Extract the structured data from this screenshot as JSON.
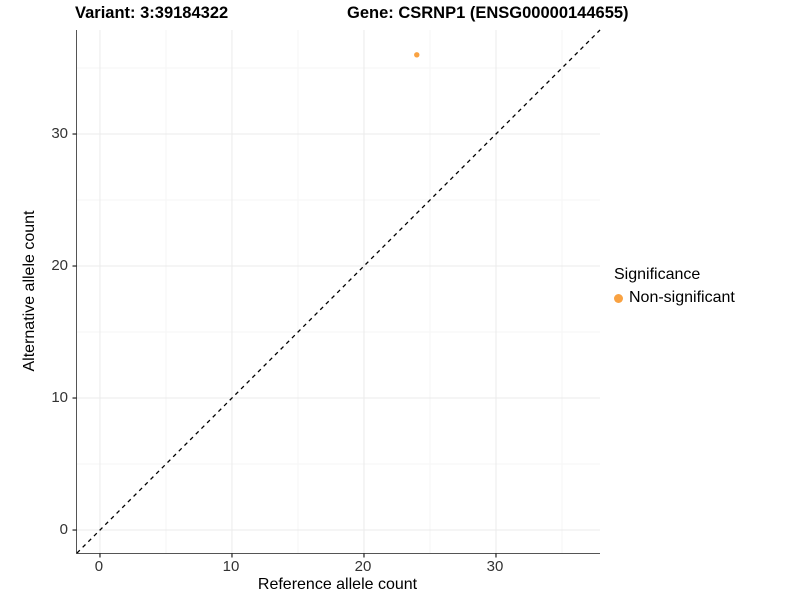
{
  "chart_data": {
    "type": "scatter",
    "titles": {
      "left": "Variant: 3:39184322",
      "right": "Gene: CSRNP1 (ENSG00000144655)"
    },
    "xlabel": "Reference allele count",
    "ylabel": "Alternative allele count",
    "xlim": [
      -1.74,
      37.88
    ],
    "ylim": [
      -1.74,
      37.88
    ],
    "x_major_ticks": [
      0,
      10,
      20,
      30
    ],
    "y_major_ticks": [
      0,
      10,
      20,
      30
    ],
    "x_minor_gridlines": [
      5,
      15,
      25,
      35
    ],
    "y_minor_gridlines": [
      5,
      15,
      25,
      35
    ],
    "grid": "on",
    "points": [
      {
        "x": 24,
        "y": 36,
        "series": "Non-significant"
      }
    ],
    "identity_line": {
      "style": "dashed",
      "from": [
        -1.74,
        -1.74
      ],
      "to": [
        37.88,
        37.88
      ],
      "color": "#000000"
    },
    "legend": {
      "title": "Significance",
      "position": "right",
      "entries": [
        {
          "label": "Non-significant",
          "color": "#F9A242"
        }
      ]
    },
    "colors": {
      "background": "#FFFFFF",
      "axis_line": "#555555",
      "tick_mark": "#333333",
      "tick_text": "#333333",
      "grid_major": "#EBEBEB",
      "grid_minor": "#F5F5F5"
    }
  }
}
